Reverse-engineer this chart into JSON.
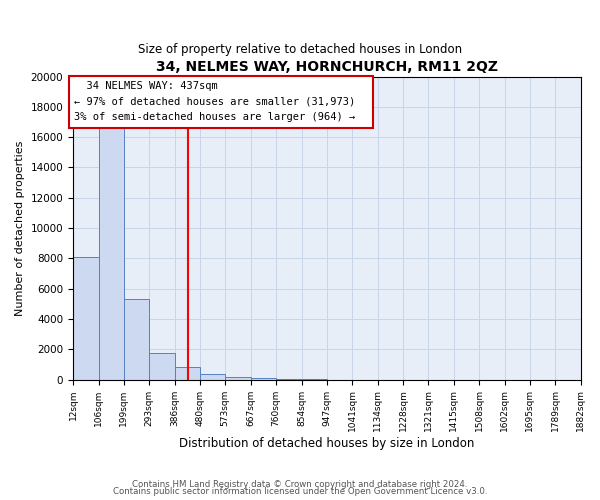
{
  "title": "34, NELMES WAY, HORNCHURCH, RM11 2QZ",
  "subtitle": "Size of property relative to detached houses in London",
  "xlabel": "Distribution of detached houses by size in London",
  "ylabel": "Number of detached properties",
  "bar_heights": [
    8100,
    16600,
    5300,
    1750,
    800,
    350,
    200,
    100,
    50,
    50,
    0,
    0,
    0,
    0,
    0,
    0,
    0,
    0,
    0,
    0
  ],
  "bin_edges": [
    12,
    106,
    199,
    293,
    386,
    480,
    573,
    667,
    760,
    854,
    947,
    1041,
    1134,
    1228,
    1321,
    1415,
    1508,
    1602,
    1695,
    1789,
    1882
  ],
  "tick_labels": [
    "12sqm",
    "106sqm",
    "199sqm",
    "293sqm",
    "386sqm",
    "480sqm",
    "573sqm",
    "667sqm",
    "760sqm",
    "854sqm",
    "947sqm",
    "1041sqm",
    "1134sqm",
    "1228sqm",
    "1321sqm",
    "1415sqm",
    "1508sqm",
    "1602sqm",
    "1695sqm",
    "1789sqm",
    "1882sqm"
  ],
  "bar_fill_color": "#ccd9f0",
  "bar_edge_color": "#5580c0",
  "grid_color": "#c8d4e8",
  "background_color": "#e8eef8",
  "red_line_x": 437,
  "annotation_title": "34 NELMES WAY: 437sqm",
  "annotation_line1": "← 97% of detached houses are smaller (31,973)",
  "annotation_line2": "3% of semi-detached houses are larger (964) →",
  "ylim": [
    0,
    20000
  ],
  "yticks": [
    0,
    2000,
    4000,
    6000,
    8000,
    10000,
    12000,
    14000,
    16000,
    18000,
    20000
  ],
  "footer1": "Contains HM Land Registry data © Crown copyright and database right 2024.",
  "footer2": "Contains public sector information licensed under the Open Government Licence v3.0."
}
